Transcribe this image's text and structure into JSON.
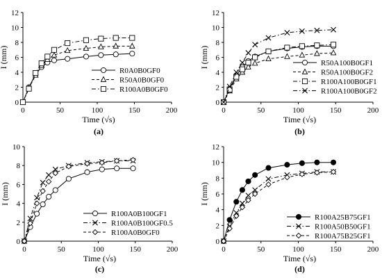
{
  "chart_data": [
    {
      "type": "line",
      "panel_label": "(a)",
      "xlabel": "Time (√s)",
      "ylabel": "I (mm)",
      "xlim": [
        0,
        200
      ],
      "ylim": [
        0,
        12
      ],
      "xticks": [
        0,
        50,
        100,
        150,
        200
      ],
      "yticks": [
        0,
        2,
        4,
        6,
        8,
        10,
        12
      ],
      "legend_position": "bottom-right",
      "series": [
        {
          "name": "R0A0B0GF0",
          "marker": "circle",
          "dash": "solid",
          "fill": "white",
          "x": [
            0,
            8,
            17,
            25,
            33,
            42,
            60,
            85,
            105,
            125,
            147
          ],
          "y": [
            0,
            2.0,
            3.7,
            4.7,
            5.3,
            5.6,
            5.8,
            6.1,
            6.3,
            6.4,
            6.5
          ]
        },
        {
          "name": "R50A0B0GF0",
          "marker": "triangle",
          "dash": "dash",
          "fill": "white",
          "x": [
            0,
            8,
            17,
            25,
            33,
            42,
            60,
            85,
            105,
            125,
            147
          ],
          "y": [
            0,
            1.9,
            3.6,
            4.9,
            5.7,
            6.3,
            6.9,
            7.2,
            7.4,
            7.5,
            7.5
          ]
        },
        {
          "name": "R100A0B0GF0",
          "marker": "square",
          "dash": "dashdot",
          "fill": "white",
          "x": [
            0,
            8,
            17,
            25,
            33,
            42,
            60,
            85,
            105,
            125,
            147
          ],
          "y": [
            0,
            1.8,
            3.9,
            5.2,
            6.1,
            7.0,
            7.9,
            8.3,
            8.5,
            8.6,
            8.6
          ]
        }
      ]
    },
    {
      "type": "line",
      "panel_label": "(b)",
      "xlabel": "Time (√s)",
      "ylabel": "I (mm)",
      "xlim": [
        0,
        200
      ],
      "ylim": [
        0,
        12
      ],
      "xticks": [
        0,
        50,
        100,
        150,
        200
      ],
      "yticks": [
        0,
        2,
        4,
        6,
        8,
        10,
        12
      ],
      "legend_position": "bottom-right",
      "series": [
        {
          "name": "R50A100B0GF1",
          "marker": "circle",
          "dash": "solid",
          "fill": "white",
          "x": [
            0,
            8,
            17,
            25,
            33,
            42,
            60,
            85,
            105,
            125,
            147
          ],
          "y": [
            0,
            1.8,
            3.6,
            4.7,
            5.5,
            6.1,
            6.8,
            7.2,
            7.4,
            7.5,
            7.5
          ]
        },
        {
          "name": "R50A100B0GF2",
          "marker": "triangle",
          "dash": "dash",
          "fill": "white",
          "x": [
            0,
            8,
            17,
            25,
            33,
            42,
            60,
            85,
            105,
            125,
            147
          ],
          "y": [
            0,
            1.5,
            3.1,
            4.0,
            4.7,
            5.2,
            5.8,
            6.1,
            6.3,
            6.5,
            6.6
          ]
        },
        {
          "name": "R100A100B0GF1",
          "marker": "square",
          "dash": "dashdot",
          "fill": "white",
          "x": [
            0,
            8,
            17,
            25,
            33,
            42,
            60,
            85,
            105,
            125,
            147
          ],
          "y": [
            0,
            1.7,
            3.4,
            4.4,
            5.3,
            6.0,
            6.8,
            7.3,
            7.5,
            7.6,
            7.7
          ]
        },
        {
          "name": "R100A100B0GF2",
          "marker": "x",
          "dash": "dashdot",
          "fill": "none",
          "x": [
            0,
            8,
            17,
            25,
            33,
            42,
            60,
            85,
            105,
            125,
            147
          ],
          "y": [
            0,
            2.1,
            4.0,
            5.3,
            6.6,
            7.7,
            8.6,
            9.3,
            9.5,
            9.6,
            9.7
          ]
        }
      ]
    },
    {
      "type": "line",
      "panel_label": "(c)",
      "xlabel": "Time (√s)",
      "ylabel": "I (mm)",
      "xlim": [
        0,
        200
      ],
      "ylim": [
        0,
        10
      ],
      "xticks": [
        0,
        50,
        100,
        150,
        200
      ],
      "yticks": [
        0,
        2,
        4,
        6,
        8,
        10
      ],
      "legend_position": "bottom-right",
      "series": [
        {
          "name": "R100A0B100GF1",
          "marker": "circle",
          "dash": "solid",
          "fill": "white",
          "x": [
            0,
            8,
            17,
            25,
            33,
            42,
            60,
            85,
            105,
            125,
            147
          ],
          "y": [
            0,
            1.5,
            2.9,
            3.9,
            4.7,
            5.4,
            6.6,
            7.3,
            7.6,
            7.7,
            7.7
          ]
        },
        {
          "name": "R100A0B100GF0.5",
          "marker": "x",
          "dash": "dashdot",
          "fill": "none",
          "x": [
            0,
            8,
            17,
            25,
            33,
            42,
            60,
            85,
            105,
            125,
            147
          ],
          "y": [
            0,
            2.4,
            4.6,
            6.2,
            7.0,
            7.6,
            8.0,
            8.3,
            8.4,
            8.5,
            8.5
          ]
        },
        {
          "name": "R100A0B0GF0",
          "marker": "diamond",
          "dash": "dash",
          "fill": "white",
          "x": [
            0,
            8,
            17,
            25,
            33,
            42,
            60,
            85,
            105,
            125,
            147
          ],
          "y": [
            0,
            1.9,
            4.0,
            5.3,
            6.3,
            7.2,
            7.9,
            8.2,
            8.3,
            8.5,
            8.6
          ]
        }
      ]
    },
    {
      "type": "line",
      "panel_label": "(d)",
      "xlabel": "Time (√s)",
      "ylabel": "I (mm)",
      "xlim": [
        0,
        200
      ],
      "ylim": [
        0,
        12
      ],
      "xticks": [
        0,
        50,
        100,
        150,
        200
      ],
      "yticks": [
        0,
        2,
        4,
        6,
        8,
        10,
        12
      ],
      "legend_position": "bottom-right",
      "series": [
        {
          "name": "R100A25B75GF1",
          "marker": "circle",
          "dash": "solid",
          "fill": "black",
          "x": [
            0,
            8,
            17,
            25,
            33,
            42,
            60,
            85,
            105,
            125,
            147
          ],
          "y": [
            0,
            2.7,
            5.0,
            6.5,
            7.6,
            8.4,
            9.3,
            9.7,
            9.9,
            10.0,
            10.0
          ]
        },
        {
          "name": "R100A50B50GF1",
          "marker": "x",
          "dash": "dashdot",
          "fill": "none",
          "x": [
            0,
            8,
            17,
            25,
            33,
            42,
            60,
            85,
            105,
            125,
            147
          ],
          "y": [
            0,
            1.9,
            3.6,
            4.8,
            5.8,
            6.5,
            7.9,
            8.4,
            8.6,
            8.8,
            8.8
          ]
        },
        {
          "name": "R100A75B25GF1",
          "marker": "diamond",
          "dash": "dash",
          "fill": "white",
          "x": [
            0,
            8,
            17,
            25,
            33,
            42,
            60,
            85,
            105,
            125,
            147
          ],
          "y": [
            0,
            1.6,
            3.2,
            4.3,
            5.2,
            6.0,
            7.2,
            8.1,
            8.5,
            8.7,
            8.8
          ]
        }
      ]
    }
  ]
}
